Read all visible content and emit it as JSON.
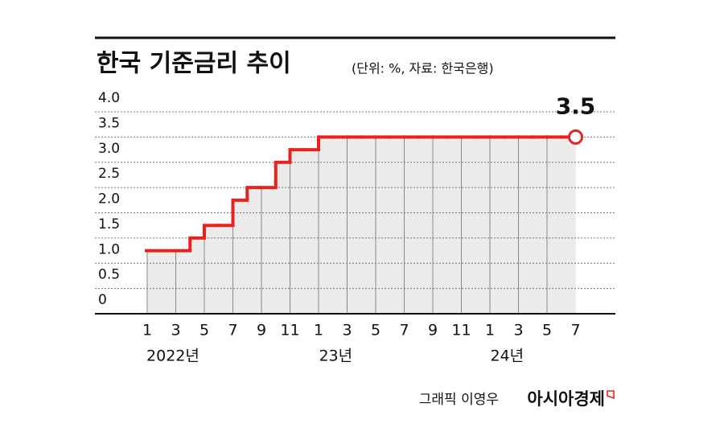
{
  "chart_data": {
    "type": "step",
    "title": "한국 기준금리 추이",
    "subtitle": "(단위: %, 자료: 한국은행)",
    "categories": [
      "1",
      null,
      "3",
      null,
      "5",
      null,
      "7",
      null,
      "9",
      null,
      "11",
      null,
      "1",
      null,
      "3",
      null,
      "5",
      null,
      "7",
      null,
      "9",
      null,
      "11",
      null,
      "1",
      null,
      "3",
      null,
      "5",
      null,
      "7"
    ],
    "years": [
      "2022년",
      "23년",
      "24년"
    ],
    "values": [
      1.25,
      1.25,
      1.25,
      1.5,
      1.75,
      1.75,
      2.25,
      2.5,
      2.5,
      3.0,
      3.25,
      3.25,
      3.5,
      3.5,
      3.5,
      3.5,
      3.5,
      3.5,
      3.5,
      3.5,
      3.5,
      3.5,
      3.5,
      3.5,
      3.5,
      3.5,
      3.5,
      3.5,
      3.5,
      3.5,
      3.5
    ],
    "labeled_point": 3.5,
    "color": "#e8231f",
    "area_color": "#ebebeb",
    "ylim": [
      0,
      4
    ],
    "yticks": [
      0,
      0.5,
      {
        "value": 1,
        "label": "1.0"
      },
      1.5,
      {
        "value": 2,
        "label": "2.0"
      },
      2.5,
      {
        "value": 3,
        "label": "3.0"
      },
      3.5,
      {
        "value": 4,
        "label": "4.0"
      }
    ],
    "grid": true,
    "credit": "그래픽 이영우",
    "source": "아시아경제"
  }
}
